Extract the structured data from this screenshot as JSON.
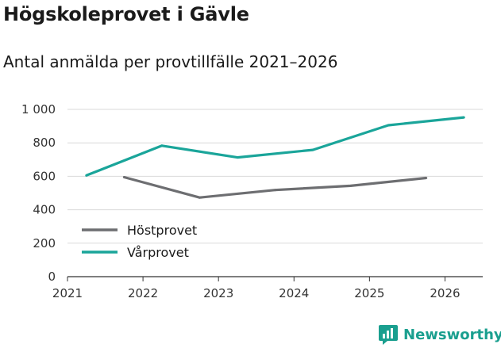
{
  "header": {
    "title": "Högskoleprovet i Gävle",
    "subtitle": "Antal anmälda per provtillfälle 2021–2026"
  },
  "brand": {
    "name": "Newsworthy",
    "icon": "bar-chart-icon",
    "color": "#1a9f8f"
  },
  "chart_data": {
    "type": "line",
    "title": "Högskoleprovet i Gävle",
    "subtitle": "Antal anmälda per provtillfälle 2021–2026",
    "xlabel": "",
    "ylabel": "",
    "xlim": [
      2021,
      2026.5
    ],
    "ylim": [
      0,
      1000
    ],
    "x_ticks": [
      2021,
      2022,
      2023,
      2024,
      2025,
      2026
    ],
    "y_ticks": [
      0,
      200,
      400,
      600,
      800,
      1000
    ],
    "y_tick_labels": [
      "0",
      "200",
      "400",
      "600",
      "800",
      "1 000"
    ],
    "grid": true,
    "legend_position": "bottom-left",
    "series": [
      {
        "name": "Höstprovet",
        "color": "#6d6e71",
        "x": [
          2021.75,
          2022.75,
          2023.75,
          2024.75,
          2025.75
        ],
        "y": [
          595,
          473,
          518,
          543,
          590
        ]
      },
      {
        "name": "Vårprovet",
        "color": "#1aa59a",
        "x": [
          2021.25,
          2022.25,
          2023.25,
          2024.25,
          2025.25,
          2026.25
        ],
        "y": [
          605,
          783,
          713,
          758,
          905,
          952
        ]
      }
    ]
  }
}
